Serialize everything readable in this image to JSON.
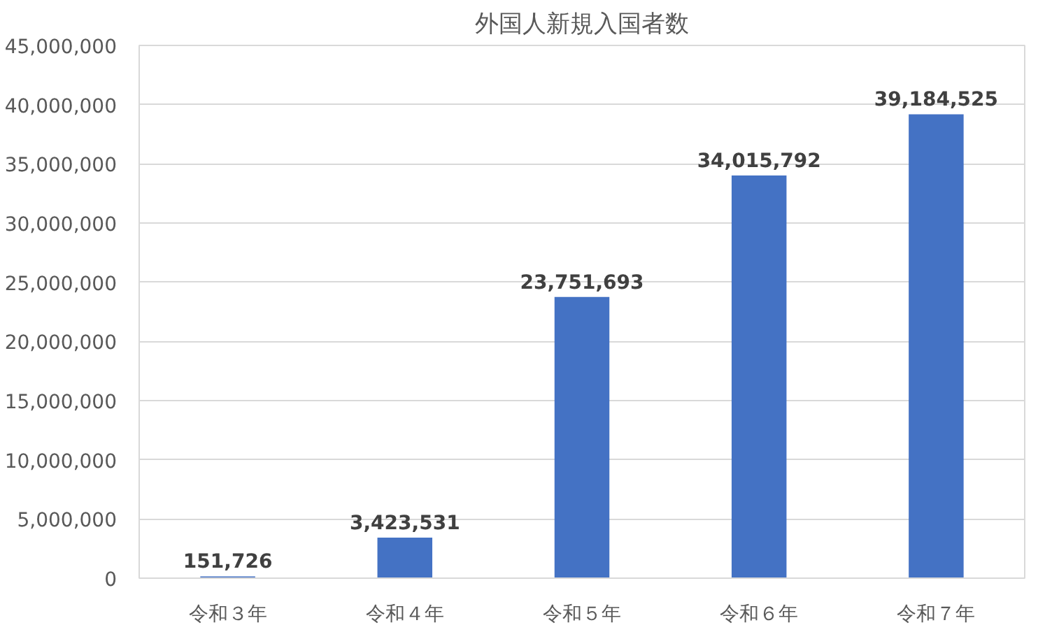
{
  "chart_data": {
    "type": "bar",
    "title": "外国人新規入国者数",
    "categories": [
      "令和３年",
      "令和４年",
      "令和５年",
      "令和６年",
      "令和７年"
    ],
    "values": [
      151726,
      3423531,
      23751693,
      34015792,
      39184525
    ],
    "value_labels": [
      "151,726",
      "3,423,531",
      "23,751,693",
      "34,015,792",
      "39,184,525"
    ],
    "color": "#4472c4",
    "ylim": [
      0,
      45000000
    ],
    "yticks": [
      0,
      {
        "value": 5000000,
        "label": "5,000,000"
      },
      {
        "value": 10000000,
        "label": "10,000,000"
      },
      {
        "value": 15000000,
        "label": "15,000,000"
      },
      {
        "value": 20000000,
        "label": "20,000,000"
      },
      {
        "value": 25000000,
        "label": "25,000,000"
      },
      {
        "value": 30000000,
        "label": "30,000,000"
      },
      {
        "value": 35000000,
        "label": "35,000,000"
      },
      {
        "value": 40000000,
        "label": "40,000,000"
      },
      {
        "value": 45000000,
        "label": "45,000,000"
      }
    ],
    "grid": "y"
  }
}
